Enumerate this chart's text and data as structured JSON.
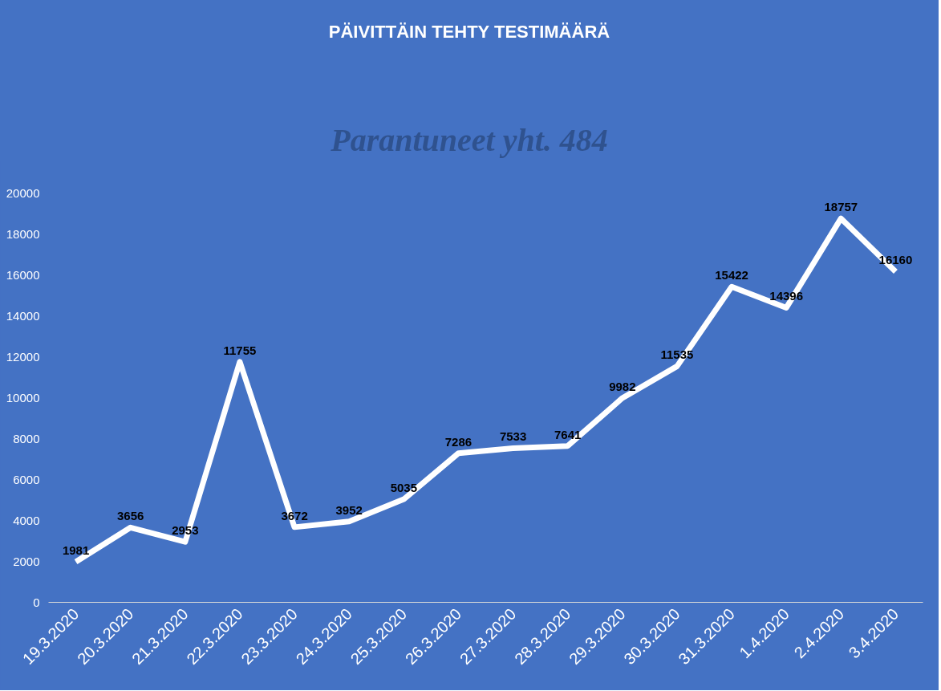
{
  "chart_data": {
    "type": "line",
    "title": "PÄIVITTÄIN TEHTY TESTIMÄÄRÄ",
    "annotations": [
      "Parantuneet yht. 484"
    ],
    "categories": [
      "19.3.2020",
      "20.3.2020",
      "21.3.2020",
      "22.3.2020",
      "23.3.2020",
      "24.3.2020",
      "25.3.2020",
      "26.3.2020",
      "27.3.2020",
      "28.3.2020",
      "29.3.2020",
      "30.3.2020",
      "31.3.2020",
      "1.4.2020",
      "2.4.2020",
      "3.4.2020"
    ],
    "series": [
      {
        "color": "#ffffff",
        "values": [
          1981,
          3656,
          2953,
          11755,
          3672,
          3952,
          5035,
          7286,
          7533,
          7641,
          9982,
          11535,
          15422,
          14396,
          18757,
          16160
        ]
      }
    ],
    "ylim": [
      0,
      20000
    ],
    "yticks": [
      0,
      2000,
      4000,
      6000,
      8000,
      10000,
      12000,
      14000,
      16000,
      18000,
      20000
    ],
    "grid": false,
    "data_labels": true,
    "marker": "none",
    "line_style": "solid"
  }
}
